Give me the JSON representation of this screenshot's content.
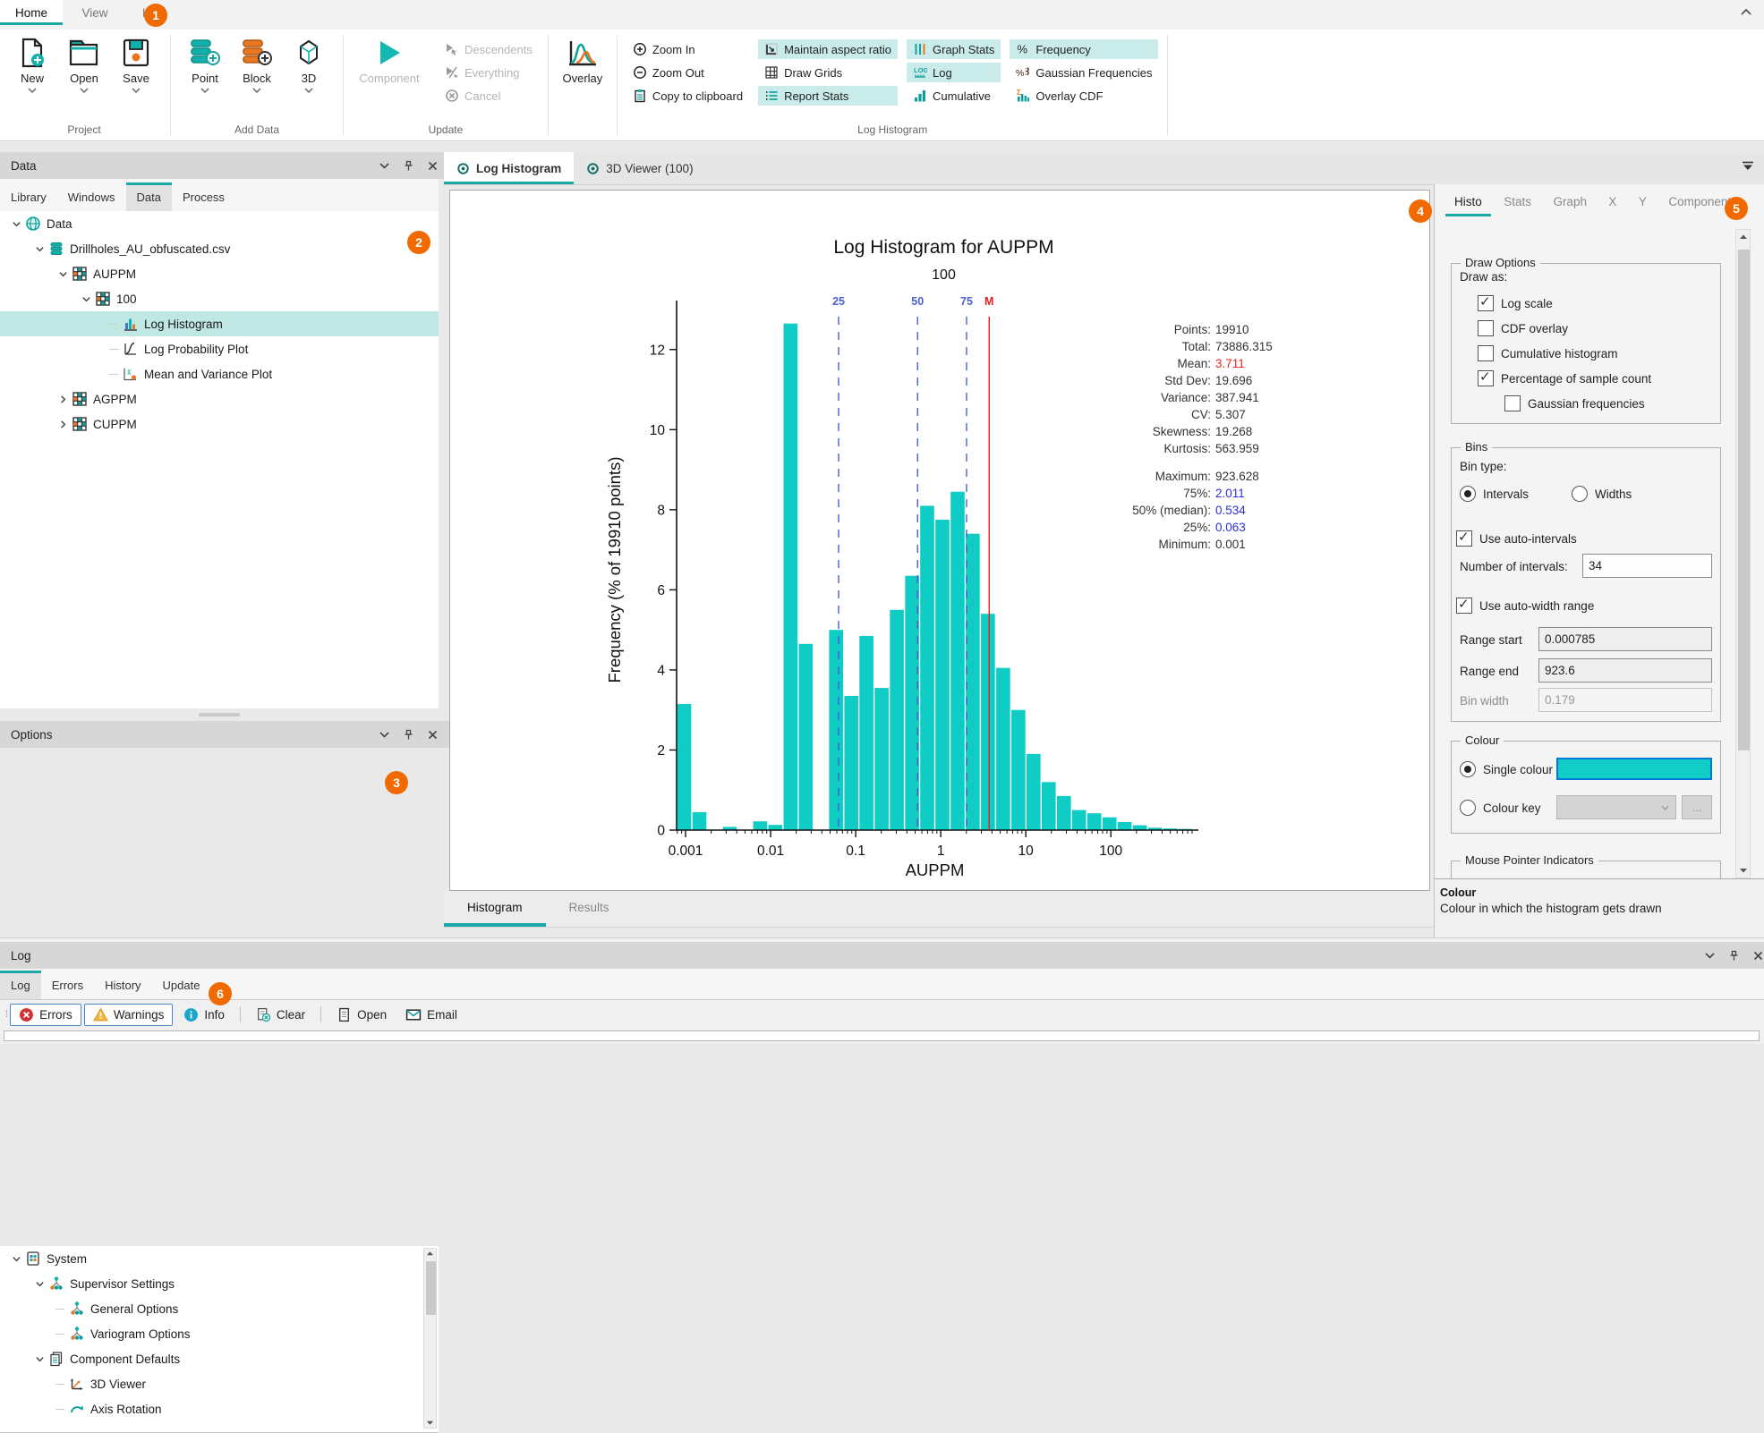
{
  "badges": {
    "b1": "1",
    "b2": "2",
    "b3": "3",
    "b4": "4",
    "b5": "5",
    "b6": "6"
  },
  "ribbon": {
    "tabs": [
      {
        "label": "Home",
        "active": true
      },
      {
        "label": "View"
      },
      {
        "label": "Help"
      }
    ],
    "groups": {
      "project": {
        "label": "Project",
        "buttons": [
          {
            "label": "New"
          },
          {
            "label": "Open"
          },
          {
            "label": "Save"
          }
        ]
      },
      "add_data": {
        "label": "Add Data",
        "buttons": [
          {
            "label": "Point"
          },
          {
            "label": "Block"
          },
          {
            "label": "3D"
          }
        ]
      },
      "update": {
        "label": "Update",
        "component": {
          "label": "Component"
        },
        "items": [
          {
            "label": "Descendents"
          },
          {
            "label": "Everything"
          },
          {
            "label": "Cancel"
          }
        ]
      },
      "overlay": {
        "label": "Overlay"
      },
      "log_histogram": {
        "label": "Log Histogram",
        "actions": [
          {
            "label": "Zoom In"
          },
          {
            "label": "Zoom Out"
          },
          {
            "label": "Copy to clipboard"
          }
        ],
        "toggles": [
          {
            "label": "Maintain aspect ratio",
            "on": true
          },
          {
            "label": "Draw Grids",
            "on": false
          },
          {
            "label": "Report Stats",
            "on": true
          },
          {
            "label": "Graph Stats",
            "on": true
          },
          {
            "label": "Log",
            "on": true
          },
          {
            "label": "Cumulative",
            "on": false
          },
          {
            "label": "Frequency",
            "on": true
          },
          {
            "label": "Gaussian Frequencies",
            "on": false
          },
          {
            "label": "Overlay CDF",
            "on": false
          }
        ]
      }
    }
  },
  "data_panel": {
    "title": "Data",
    "tabs": [
      {
        "label": "Library"
      },
      {
        "label": "Windows"
      },
      {
        "label": "Data",
        "active": true
      },
      {
        "label": "Process"
      }
    ],
    "tree": [
      {
        "label": "Data"
      },
      {
        "label": "Drillholes_AU_obfuscated.csv"
      },
      {
        "label": "AUPPM"
      },
      {
        "label": "100"
      },
      {
        "label": "Log Histogram",
        "selected": true
      },
      {
        "label": "Log Probability Plot"
      },
      {
        "label": "Mean and Variance Plot"
      },
      {
        "label": "AGPPM"
      },
      {
        "label": "CUPPM"
      }
    ]
  },
  "options_panel": {
    "title": "Options",
    "tree": [
      {
        "label": "System"
      },
      {
        "label": "Supervisor Settings"
      },
      {
        "label": "General Options"
      },
      {
        "label": "Variogram Options"
      },
      {
        "label": "Component Defaults"
      },
      {
        "label": "3D Viewer"
      },
      {
        "label": "Axis Rotation"
      }
    ]
  },
  "doc_tabs": [
    {
      "label": "Log Histogram",
      "active": true
    },
    {
      "label": "3D Viewer (100)"
    }
  ],
  "view_tabs": [
    {
      "label": "Histogram",
      "active": true
    },
    {
      "label": "Results"
    }
  ],
  "right_panel": {
    "tabs": [
      {
        "label": "Histo",
        "active": true
      },
      {
        "label": "Stats"
      },
      {
        "label": "Graph"
      },
      {
        "label": "X"
      },
      {
        "label": "Y"
      },
      {
        "label": "Component"
      }
    ],
    "draw_options": {
      "title": "Draw Options",
      "draw_as": "Draw as:",
      "items": [
        {
          "label": "Log scale",
          "checked": true
        },
        {
          "label": "CDF overlay",
          "checked": false
        },
        {
          "label": "Cumulative histogram",
          "checked": false
        },
        {
          "label": "Percentage of sample count",
          "checked": true
        },
        {
          "label": "Gaussian frequencies",
          "checked": false
        }
      ]
    },
    "bins": {
      "title": "Bins",
      "bin_type": "Bin type:",
      "intervals": {
        "label": "Intervals",
        "selected": true
      },
      "widths": {
        "label": "Widths",
        "selected": false
      },
      "auto_intervals": {
        "label": "Use auto-intervals",
        "checked": true
      },
      "num_intervals": {
        "label": "Number of intervals:",
        "value": "34"
      },
      "auto_width": {
        "label": "Use auto-width range",
        "checked": true
      },
      "range_start": {
        "label": "Range start",
        "value": "0.000785"
      },
      "range_end": {
        "label": "Range end",
        "value": "923.6"
      },
      "bin_width": {
        "label": "Bin width",
        "value": "0.179"
      }
    },
    "colour": {
      "title": "Colour",
      "single": {
        "label": "Single colour",
        "selected": true,
        "swatch": "#10cdc6"
      },
      "key": {
        "label": "Colour key",
        "selected": false
      }
    },
    "mouse": {
      "title": "Mouse Pointer Indicators"
    },
    "help": {
      "title": "Colour",
      "text": "Colour in which the histogram gets drawn"
    }
  },
  "log_panel": {
    "title": "Log",
    "tabs": [
      {
        "label": "Log",
        "active": true
      },
      {
        "label": "Errors"
      },
      {
        "label": "History"
      },
      {
        "label": "Update"
      }
    ],
    "toolbar": [
      {
        "label": "Errors",
        "toggled": true
      },
      {
        "label": "Warnings",
        "toggled": true
      },
      {
        "label": "Info"
      },
      {
        "label": "Clear"
      },
      {
        "label": "Open"
      },
      {
        "label": "Email"
      }
    ]
  },
  "chart_data": {
    "type": "bar",
    "title": "Log Histogram for AUPPM",
    "subtitle": "100",
    "xlabel": "AUPPM",
    "ylabel": "Frequency (% of 19910 points)",
    "x_scale": "log",
    "xlim": [
      0.000785,
      923.6
    ],
    "ylim": [
      0,
      13
    ],
    "x_ticks": [
      0.001,
      0.01,
      0.1,
      1,
      10,
      100
    ],
    "y_ticks": [
      0,
      2,
      4,
      6,
      8,
      10,
      12
    ],
    "bar_color": "#0fccc5",
    "bins": {
      "count": 34,
      "start": 0.000785,
      "end": 923.6
    },
    "values": [
      3.15,
      0.45,
      0,
      0.08,
      0,
      0.22,
      0.13,
      12.65,
      4.65,
      0,
      5.0,
      3.35,
      4.85,
      3.55,
      5.5,
      6.35,
      8.1,
      7.75,
      8.45,
      7.4,
      5.4,
      4.05,
      3.0,
      1.9,
      1.2,
      0.85,
      0.5,
      0.42,
      0.32,
      0.2,
      0.12,
      0.06,
      0.04,
      0.03
    ],
    "markers": [
      {
        "label": "25",
        "value": 0.063,
        "color": "#4a5fd0",
        "style": "dashed"
      },
      {
        "label": "50",
        "value": 0.534,
        "color": "#4a5fd0",
        "style": "dashed"
      },
      {
        "label": "75",
        "value": 2.011,
        "color": "#4a5fd0",
        "style": "dashed"
      },
      {
        "label": "M",
        "value": 3.711,
        "color": "#e02020",
        "style": "solid"
      }
    ],
    "stats": [
      [
        {
          "label": "Points:",
          "value": "19910"
        },
        {
          "label": "Total:",
          "value": "73886.315"
        },
        {
          "label": "Mean:",
          "value": "3.711",
          "color": "#e8281e"
        },
        {
          "label": "Std Dev:",
          "value": "19.696"
        },
        {
          "label": "Variance:",
          "value": "387.941"
        },
        {
          "label": "CV:",
          "value": "5.307"
        },
        {
          "label": "Skewness:",
          "value": "19.268"
        },
        {
          "label": "Kurtosis:",
          "value": "563.959"
        }
      ],
      [
        {
          "label": "Maximum:",
          "value": "923.628"
        },
        {
          "label": "75%:",
          "value": "2.011",
          "color": "#2f2fd8"
        },
        {
          "label": "50% (median):",
          "value": "0.534",
          "color": "#2f2fd8"
        },
        {
          "label": "25%:",
          "value": "0.063",
          "color": "#2f2fd8"
        },
        {
          "label": "Minimum:",
          "value": "0.001"
        }
      ]
    ]
  }
}
